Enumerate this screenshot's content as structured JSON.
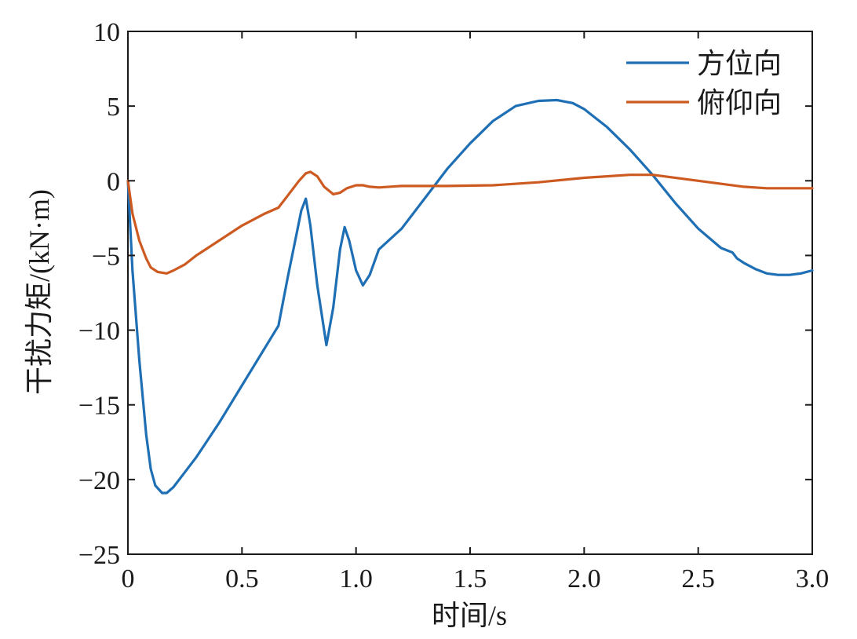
{
  "chart_data": {
    "type": "line",
    "xlabel": "时间/s",
    "ylabel": "干扰力矩/(kN·m)",
    "xlim": [
      0,
      3.0
    ],
    "ylim": [
      -25,
      10
    ],
    "xticks": [
      0,
      0.5,
      1.0,
      1.5,
      2.0,
      2.5,
      3.0
    ],
    "xtick_labels": [
      "0",
      "0.5",
      "1.0",
      "1.5",
      "2.0",
      "2.5",
      "3.0"
    ],
    "yticks": [
      -25,
      -20,
      -15,
      -10,
      -5,
      0,
      5,
      10
    ],
    "ytick_labels": [
      "−25",
      "−20",
      "−15",
      "−10",
      "−5",
      "0",
      "5",
      "10"
    ],
    "grid": false,
    "legend_position": "top-right",
    "series": [
      {
        "name": "方位向",
        "color": "#1f6fb5",
        "x": [
          0,
          0.02,
          0.05,
          0.08,
          0.1,
          0.12,
          0.15,
          0.17,
          0.2,
          0.25,
          0.3,
          0.4,
          0.5,
          0.6,
          0.66,
          0.7,
          0.74,
          0.76,
          0.78,
          0.8,
          0.83,
          0.87,
          0.9,
          0.93,
          0.95,
          0.97,
          1.0,
          1.03,
          1.06,
          1.1,
          1.2,
          1.3,
          1.4,
          1.5,
          1.6,
          1.7,
          1.8,
          1.88,
          1.95,
          2.0,
          2.1,
          2.2,
          2.3,
          2.4,
          2.5,
          2.6,
          2.65,
          2.67,
          2.7,
          2.75,
          2.8,
          2.85,
          2.9,
          2.95,
          3.0
        ],
        "y": [
          0,
          -6,
          -12,
          -17,
          -19.3,
          -20.4,
          -20.9,
          -20.9,
          -20.5,
          -19.5,
          -18.5,
          -16.2,
          -13.7,
          -11.2,
          -9.7,
          -6.5,
          -3.5,
          -2.0,
          -1.2,
          -3.0,
          -7.0,
          -11.0,
          -8.5,
          -4.6,
          -3.1,
          -4.0,
          -6.0,
          -7.0,
          -6.3,
          -4.6,
          -3.2,
          -1.2,
          0.8,
          2.5,
          4.0,
          5.0,
          5.35,
          5.4,
          5.2,
          4.8,
          3.6,
          2.1,
          0.4,
          -1.5,
          -3.2,
          -4.5,
          -4.8,
          -5.2,
          -5.5,
          -5.9,
          -6.2,
          -6.3,
          -6.3,
          -6.2,
          -6.0
        ]
      },
      {
        "name": "俯仰向",
        "color": "#cc5a21",
        "x": [
          0,
          0.02,
          0.05,
          0.08,
          0.1,
          0.13,
          0.17,
          0.2,
          0.25,
          0.3,
          0.4,
          0.5,
          0.6,
          0.66,
          0.7,
          0.75,
          0.78,
          0.8,
          0.83,
          0.86,
          0.9,
          0.93,
          0.96,
          1.0,
          1.03,
          1.06,
          1.1,
          1.2,
          1.4,
          1.6,
          1.8,
          2.0,
          2.2,
          2.3,
          2.5,
          2.7,
          2.8,
          3.0
        ],
        "y": [
          0,
          -2.2,
          -4.0,
          -5.2,
          -5.8,
          -6.1,
          -6.2,
          -6.0,
          -5.6,
          -5.0,
          -4.0,
          -3.0,
          -2.2,
          -1.8,
          -1.0,
          0.0,
          0.5,
          0.6,
          0.3,
          -0.4,
          -0.9,
          -0.8,
          -0.5,
          -0.3,
          -0.3,
          -0.4,
          -0.45,
          -0.35,
          -0.35,
          -0.3,
          -0.1,
          0.2,
          0.4,
          0.4,
          0.0,
          -0.4,
          -0.5,
          -0.5
        ]
      }
    ]
  }
}
